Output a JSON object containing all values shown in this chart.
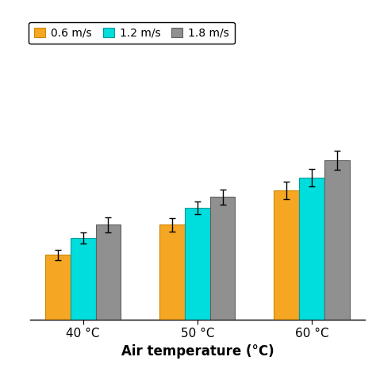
{
  "categories": [
    "40 °C",
    "50 °C",
    "60 °C"
  ],
  "series_labels": [
    "0.6 m/s",
    "1.2 m/s",
    "1.8 m/s"
  ],
  "bar_colors": [
    "#F5A623",
    "#00DDDD",
    "#909090"
  ],
  "bar_edge_colors": [
    "#cc8800",
    "#009999",
    "#606060"
  ],
  "values": [
    [
      0.3,
      0.44,
      0.6
    ],
    [
      0.38,
      0.52,
      0.66
    ],
    [
      0.44,
      0.57,
      0.74
    ]
  ],
  "errors": [
    [
      0.025,
      0.03,
      0.04
    ],
    [
      0.025,
      0.03,
      0.04
    ],
    [
      0.035,
      0.035,
      0.045
    ]
  ],
  "xlabel": "Air temperature (°C)",
  "ylabel": "",
  "ylim": [
    0,
    1.1
  ],
  "bar_width": 0.22,
  "legend_position": "upper left",
  "background_color": "#ffffff",
  "figsize": [
    4.74,
    4.74
  ],
  "dpi": 100
}
